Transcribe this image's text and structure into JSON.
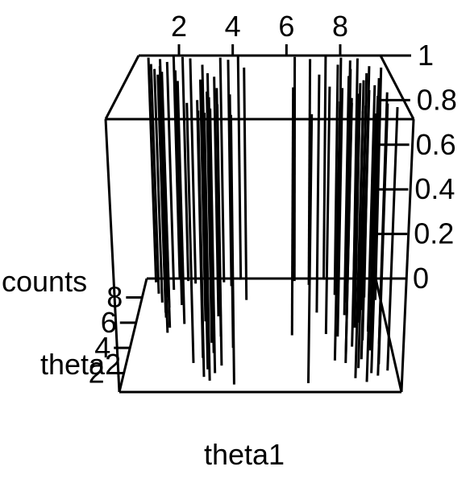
{
  "chart_data": {
    "type": "3d-histogram",
    "xlabel": "theta1",
    "ylabel": "theta2",
    "zlabel": "counts",
    "x_ticks": [
      "2",
      "4",
      "6",
      "8"
    ],
    "x_tick_values": [
      2,
      4,
      6,
      8
    ],
    "y_ticks": [
      "2",
      "4",
      "6",
      "8"
    ],
    "y_tick_values": [
      2,
      4,
      6,
      8
    ],
    "z_ticks": [
      "0",
      "0.2",
      "0.4",
      "0.6",
      "0.8",
      "1"
    ],
    "z_tick_values": [
      0,
      0.2,
      0.4,
      0.6,
      0.8,
      1
    ],
    "xlim": [
      0.5,
      9.5
    ],
    "ylim": [
      0.5,
      9.5
    ],
    "zlim": [
      0,
      1
    ],
    "grid": false,
    "spike_height": 1,
    "points": [
      {
        "x": 0.9,
        "y": 9.2
      },
      {
        "x": 1.1,
        "y": 8.3
      },
      {
        "x": 1.3,
        "y": 7.6
      },
      {
        "x": 1.35,
        "y": 9.0
      },
      {
        "x": 1.45,
        "y": 8.0
      },
      {
        "x": 1.5,
        "y": 6.8
      },
      {
        "x": 1.55,
        "y": 6.4
      },
      {
        "x": 1.6,
        "y": 7.2
      },
      {
        "x": 1.65,
        "y": 8.6
      },
      {
        "x": 1.7,
        "y": 5.2
      },
      {
        "x": 1.75,
        "y": 5.6
      },
      {
        "x": 1.8,
        "y": 9.5
      },
      {
        "x": 2.05,
        "y": 7.4
      },
      {
        "x": 2.15,
        "y": 9.3
      },
      {
        "x": 2.25,
        "y": 5.9
      },
      {
        "x": 2.45,
        "y": 9.1
      },
      {
        "x": 2.75,
        "y": 2.8
      },
      {
        "x": 2.95,
        "y": 8.2
      },
      {
        "x": 3.0,
        "y": 6.1
      },
      {
        "x": 3.05,
        "y": 3.2
      },
      {
        "x": 3.1,
        "y": 5.3
      },
      {
        "x": 3.15,
        "y": 1.7
      },
      {
        "x": 3.2,
        "y": 7.0
      },
      {
        "x": 3.25,
        "y": 2.3
      },
      {
        "x": 3.3,
        "y": 4.4
      },
      {
        "x": 3.35,
        "y": 1.4
      },
      {
        "x": 3.4,
        "y": 3.6
      },
      {
        "x": 3.45,
        "y": 6.5
      },
      {
        "x": 3.5,
        "y": 2.0
      },
      {
        "x": 3.55,
        "y": 9.2
      },
      {
        "x": 3.6,
        "y": 4.9
      },
      {
        "x": 3.7,
        "y": 2.6
      },
      {
        "x": 3.85,
        "y": 8.9
      },
      {
        "x": 4.05,
        "y": 4.0
      },
      {
        "x": 4.15,
        "y": 1.1
      },
      {
        "x": 4.2,
        "y": 9.4
      },
      {
        "x": 4.45,
        "y": 7.8
      },
      {
        "x": 6.1,
        "y": 5.0
      },
      {
        "x": 6.3,
        "y": 9.3
      },
      {
        "x": 6.55,
        "y": 1.2
      },
      {
        "x": 6.85,
        "y": 9.0
      },
      {
        "x": 7.05,
        "y": 6.8
      },
      {
        "x": 7.3,
        "y": 5.1
      },
      {
        "x": 7.45,
        "y": 9.4
      },
      {
        "x": 7.5,
        "y": 3.0
      },
      {
        "x": 7.7,
        "y": 4.9
      },
      {
        "x": 7.8,
        "y": 8.2
      },
      {
        "x": 7.85,
        "y": 2.8
      },
      {
        "x": 7.9,
        "y": 3.5
      },
      {
        "x": 8.0,
        "y": 9.2
      },
      {
        "x": 8.05,
        "y": 6.6
      },
      {
        "x": 8.1,
        "y": 1.6
      },
      {
        "x": 8.15,
        "y": 4.1
      },
      {
        "x": 8.2,
        "y": 7.6
      },
      {
        "x": 8.25,
        "y": 2.4
      },
      {
        "x": 8.3,
        "y": 8.8
      },
      {
        "x": 8.35,
        "y": 5.6
      },
      {
        "x": 8.4,
        "y": 3.1
      },
      {
        "x": 8.45,
        "y": 1.3
      },
      {
        "x": 8.5,
        "y": 6.0
      },
      {
        "x": 8.55,
        "y": 4.6
      },
      {
        "x": 8.6,
        "y": 9.1
      },
      {
        "x": 8.65,
        "y": 2.0
      },
      {
        "x": 8.7,
        "y": 7.0
      },
      {
        "x": 8.75,
        "y": 3.8
      },
      {
        "x": 8.8,
        "y": 5.3
      },
      {
        "x": 8.85,
        "y": 1.8
      },
      {
        "x": 8.9,
        "y": 8.0
      },
      {
        "x": 8.95,
        "y": 2.7
      },
      {
        "x": 9.05,
        "y": 6.3
      },
      {
        "x": 9.1,
        "y": 4.3
      },
      {
        "x": 9.2,
        "y": 2.2
      },
      {
        "x": 9.3,
        "y": 7.8
      }
    ]
  }
}
